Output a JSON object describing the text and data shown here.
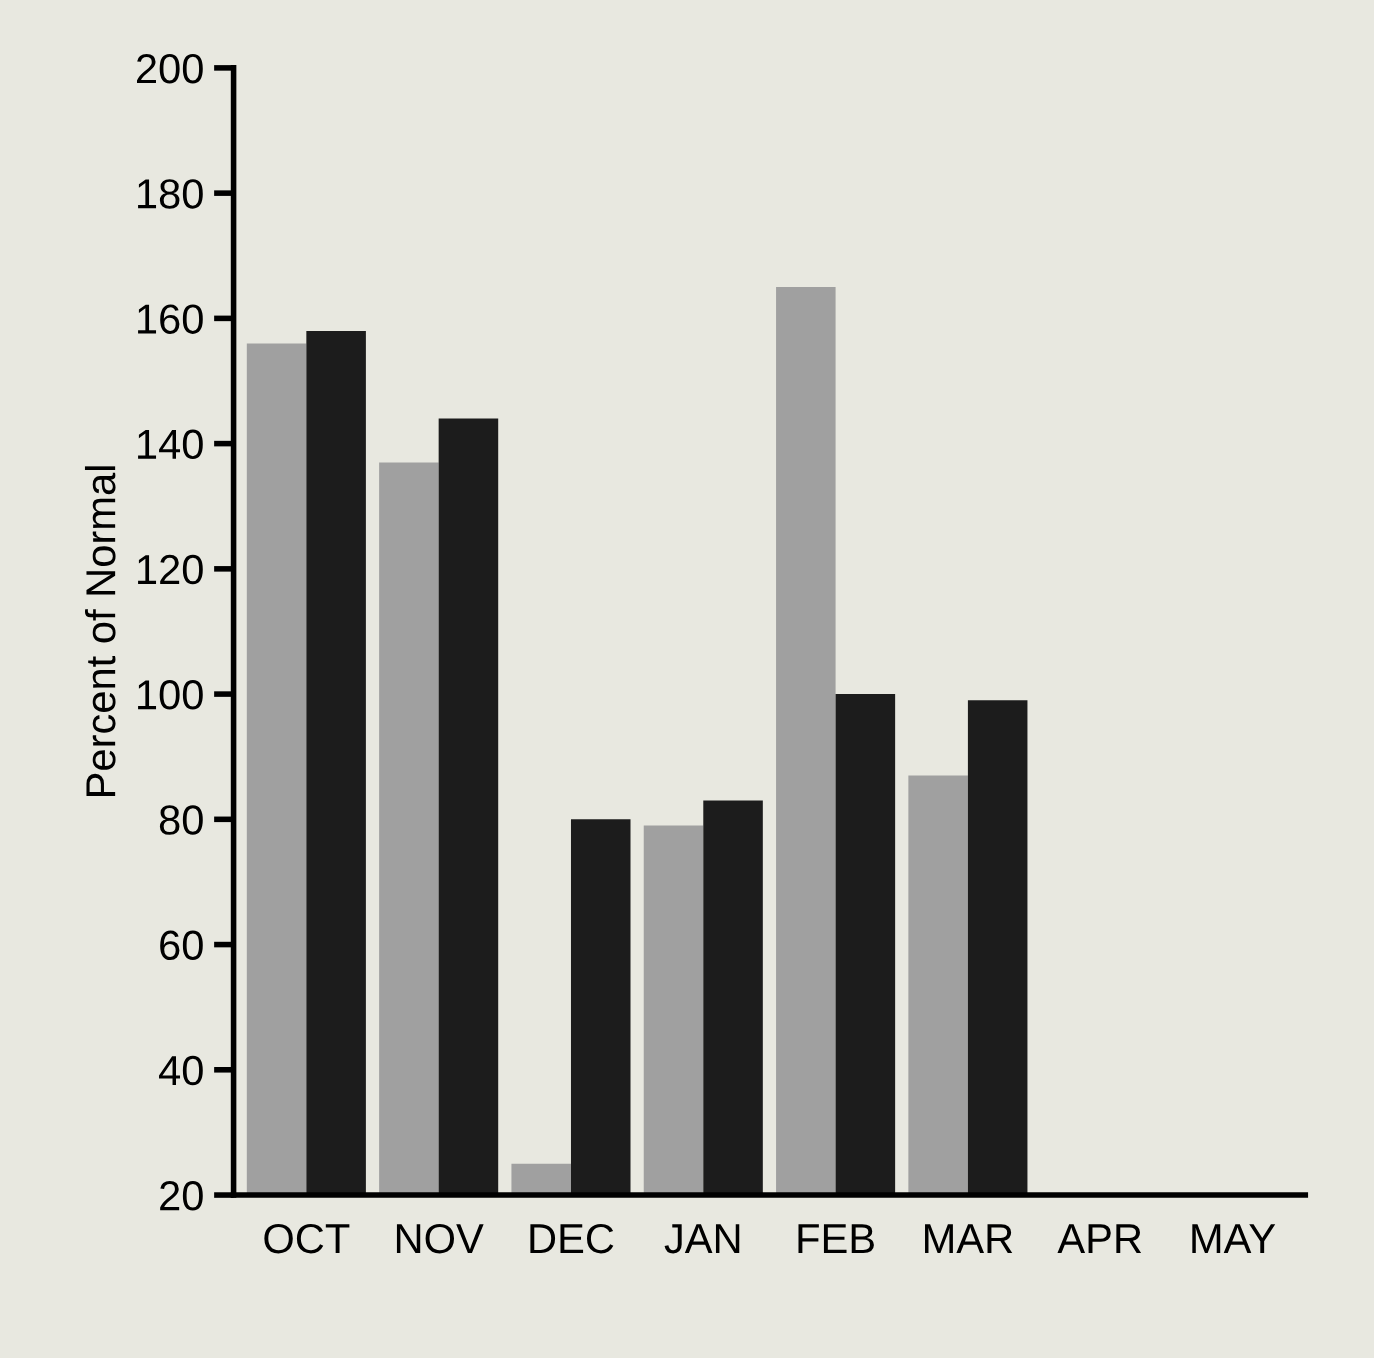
{
  "chart_data": {
    "type": "bar",
    "ylabel": "Percent of Normal",
    "categories": [
      "OCT",
      "NOV",
      "DEC",
      "JAN",
      "FEB",
      "MAR",
      "APR",
      "MAY"
    ],
    "series": [
      {
        "color": "#a0a0a0",
        "values": [
          156,
          137,
          25,
          79,
          165,
          87,
          null,
          null
        ]
      },
      {
        "color": "#1c1c1c",
        "values": [
          158,
          144,
          80,
          83,
          100,
          99,
          null,
          null
        ]
      }
    ],
    "ylim": [
      20,
      200
    ],
    "yticks": [
      20,
      40,
      60,
      80,
      100,
      120,
      140,
      160,
      180,
      200
    ],
    "grid": false,
    "legend": false
  }
}
